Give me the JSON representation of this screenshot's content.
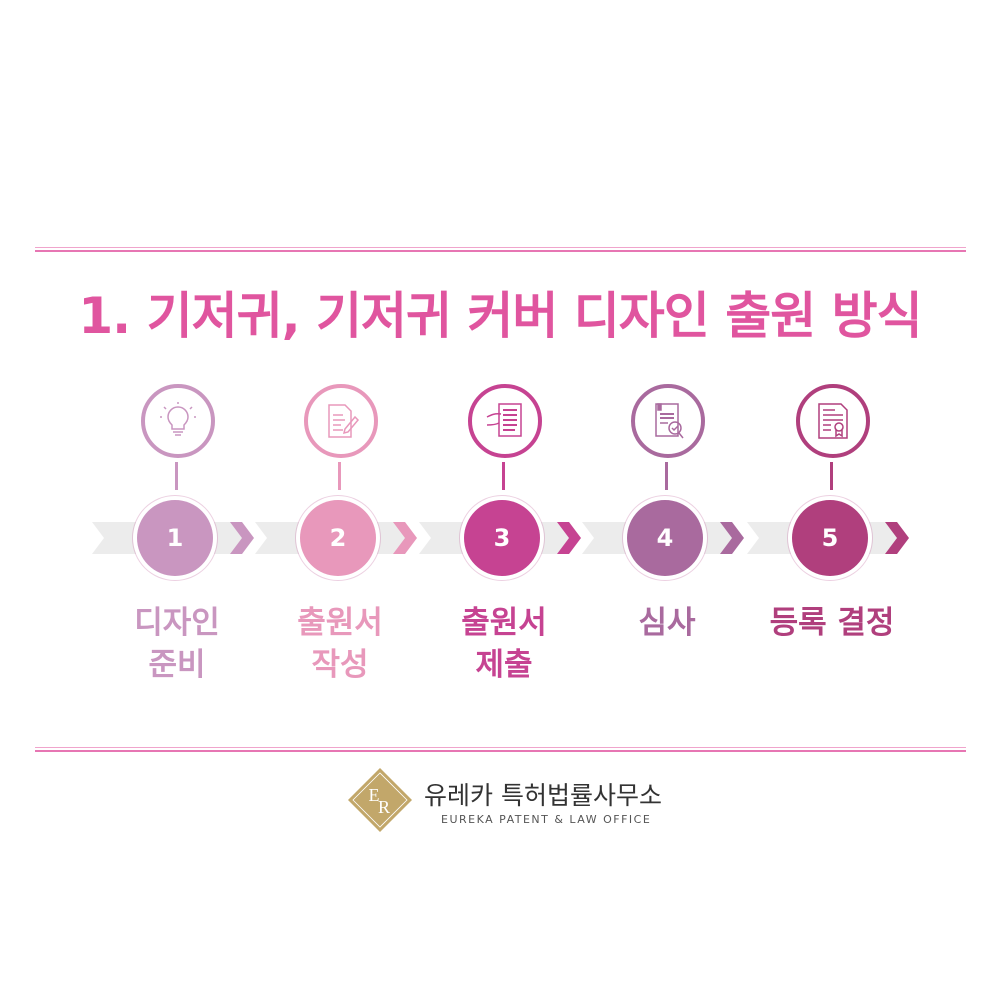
{
  "title": "1. 기저귀, 기저귀 커버 디자인 출원 방식",
  "steps": [
    {
      "number": "1",
      "label_line1": "디자인",
      "label_line2": "준비",
      "icon": "lightbulb-icon",
      "color": "#c996c0"
    },
    {
      "number": "2",
      "label_line1": "출원서",
      "label_line2": "작성",
      "icon": "document-pen-icon",
      "color": "#e898bb"
    },
    {
      "number": "3",
      "label_line1": "출원서",
      "label_line2": "제출",
      "icon": "hand-document-icon",
      "color": "#c64392"
    },
    {
      "number": "4",
      "label_line1": "심사",
      "label_line2": "",
      "icon": "document-magnifier-check-icon",
      "color": "#a96a9e"
    },
    {
      "number": "5",
      "label_line1": "등록 결정",
      "label_line2": "",
      "icon": "certificate-icon",
      "color": "#b03f7d"
    }
  ],
  "logo": {
    "monogram": "ER",
    "name_ko": "유레카 특허법률사무소",
    "name_en": "EUREKA PATENT & LAW OFFICE",
    "color": "#c2a76a"
  },
  "colors": {
    "title": "#e0559f",
    "rule": "#e776b3",
    "band": "#ececec"
  }
}
